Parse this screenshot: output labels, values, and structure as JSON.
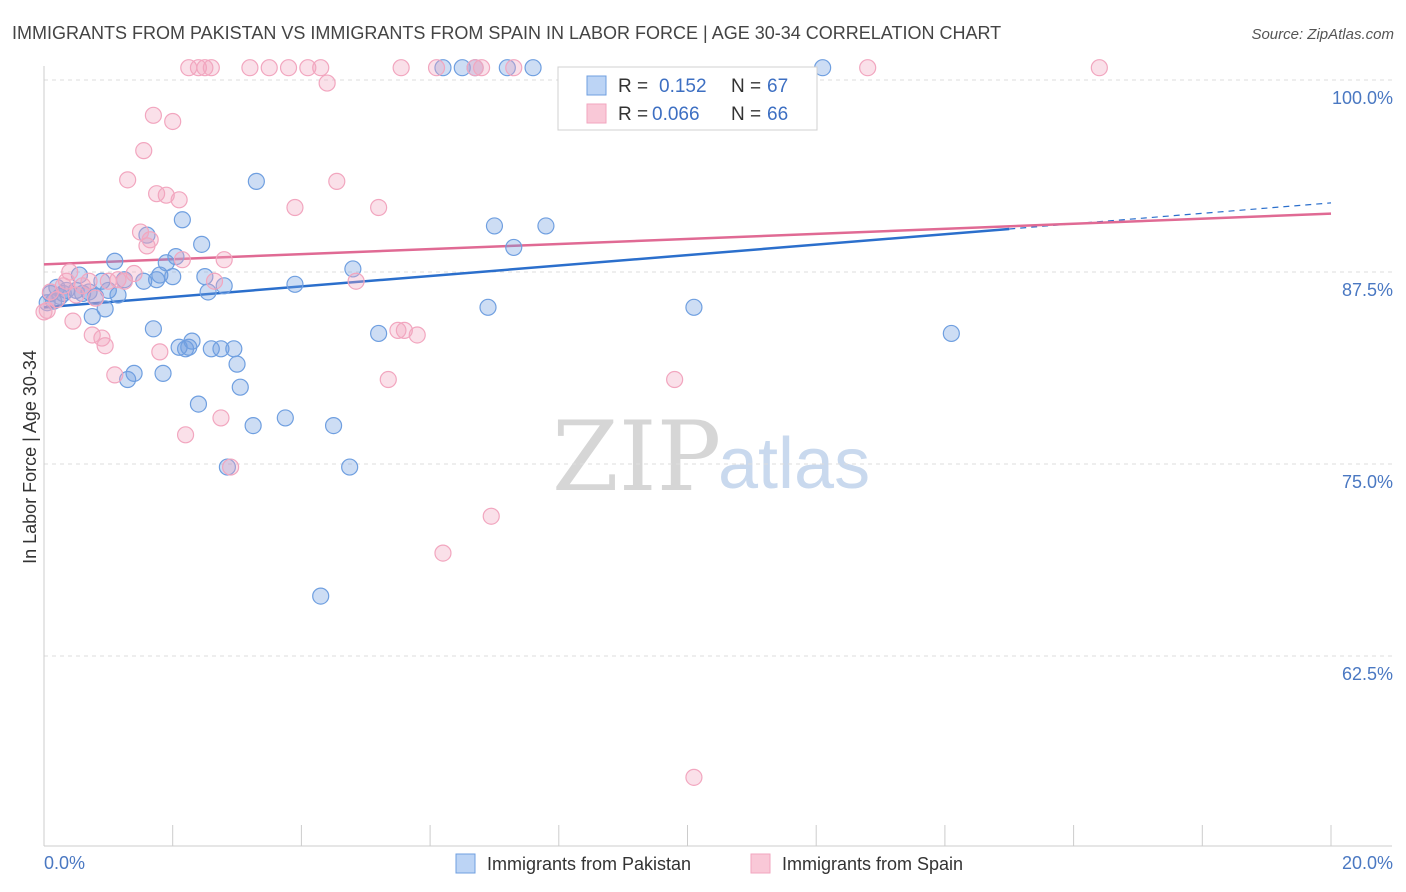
{
  "title": "IMMIGRANTS FROM PAKISTAN VS IMMIGRANTS FROM SPAIN IN LABOR FORCE | AGE 30-34 CORRELATION CHART",
  "source": "Source: ZipAtlas.com",
  "watermark": {
    "zip": "ZIP",
    "atlas": "atlas"
  },
  "chart_data": {
    "type": "scatter",
    "ylabel": "In Labor Force | Age 30-34",
    "xlim": [
      0,
      20
    ],
    "ylim": [
      50,
      101.5
    ],
    "x_tick_labels": [
      {
        "value": 0,
        "label": "0.0%"
      },
      {
        "value": 20,
        "label": "20.0%"
      }
    ],
    "y_tick_labels": [
      {
        "value": 100,
        "label": "100.0%"
      },
      {
        "value": 87.5,
        "label": "87.5%"
      },
      {
        "value": 75,
        "label": "75.0%"
      },
      {
        "value": 62.5,
        "label": "62.5%"
      }
    ],
    "grid": "horizontal dashed",
    "legend_position": "top-center",
    "series": [
      {
        "name": "Immigrants from Pakistan",
        "color": "#6f9fe0",
        "line_color": "#2b6fcc",
        "R": "0.152",
        "N": "67",
        "trend": {
          "x0": 0,
          "y0": 85.2,
          "x1": 15.0,
          "y1": 90.3,
          "dash_to_x": 20,
          "dash_to_y": 92.0
        },
        "points": [
          [
            0.1,
            86.1
          ],
          [
            0.15,
            85.6
          ],
          [
            0.2,
            86.5
          ],
          [
            0.3,
            86.1
          ],
          [
            0.35,
            86.3
          ],
          [
            0.5,
            86.3
          ],
          [
            0.55,
            87.3
          ],
          [
            0.6,
            86.1
          ],
          [
            0.7,
            86.2
          ],
          [
            0.75,
            84.6
          ],
          [
            0.8,
            85.9
          ],
          [
            0.9,
            86.9
          ],
          [
            0.95,
            85.1
          ],
          [
            1.0,
            86.3
          ],
          [
            1.1,
            88.2
          ],
          [
            1.15,
            86.0
          ],
          [
            1.25,
            87.0
          ],
          [
            1.3,
            80.5
          ],
          [
            1.4,
            80.9
          ],
          [
            1.55,
            86.9
          ],
          [
            1.6,
            89.9
          ],
          [
            1.7,
            83.8
          ],
          [
            1.75,
            87.0
          ],
          [
            1.8,
            87.3
          ],
          [
            1.85,
            80.9
          ],
          [
            1.9,
            88.1
          ],
          [
            2.0,
            87.2
          ],
          [
            2.05,
            88.5
          ],
          [
            2.1,
            82.6
          ],
          [
            2.15,
            90.9
          ],
          [
            2.2,
            82.5
          ],
          [
            2.25,
            82.6
          ],
          [
            2.3,
            83.0
          ],
          [
            2.4,
            78.9
          ],
          [
            2.45,
            89.3
          ],
          [
            2.5,
            87.2
          ],
          [
            2.55,
            86.2
          ],
          [
            2.6,
            82.5
          ],
          [
            2.75,
            82.5
          ],
          [
            2.8,
            86.6
          ],
          [
            2.85,
            74.8
          ],
          [
            2.95,
            82.5
          ],
          [
            3.0,
            81.5
          ],
          [
            3.05,
            80.0
          ],
          [
            3.25,
            77.5
          ],
          [
            3.3,
            93.4
          ],
          [
            3.75,
            78.0
          ],
          [
            3.9,
            86.7
          ],
          [
            4.3,
            66.4
          ],
          [
            4.5,
            77.5
          ],
          [
            4.75,
            74.8
          ],
          [
            4.8,
            87.7
          ],
          [
            5.2,
            83.5
          ],
          [
            6.2,
            100.8
          ],
          [
            6.5,
            100.8
          ],
          [
            6.7,
            100.8
          ],
          [
            6.9,
            85.2
          ],
          [
            7.0,
            90.5
          ],
          [
            7.2,
            100.8
          ],
          [
            7.3,
            89.1
          ],
          [
            7.6,
            100.8
          ],
          [
            7.8,
            90.5
          ],
          [
            10.1,
            85.2
          ],
          [
            12.1,
            100.8
          ],
          [
            14.1,
            83.5
          ],
          [
            0.05,
            85.5
          ],
          [
            0.25,
            85.9
          ]
        ]
      },
      {
        "name": "Immigrants from Spain",
        "color": "#f2a6bf",
        "line_color": "#e06a94",
        "R": "0.066",
        "N": "66",
        "trend": {
          "x0": 0,
          "y0": 88.0,
          "x1": 20,
          "y1": 91.3
        },
        "points": [
          [
            0.05,
            85.0
          ],
          [
            0.1,
            86.2
          ],
          [
            0.2,
            85.7
          ],
          [
            0.3,
            86.6
          ],
          [
            0.35,
            86.9
          ],
          [
            0.4,
            87.5
          ],
          [
            0.45,
            84.3
          ],
          [
            0.5,
            86.0
          ],
          [
            0.6,
            86.6
          ],
          [
            0.7,
            86.9
          ],
          [
            0.75,
            83.4
          ],
          [
            0.8,
            85.8
          ],
          [
            0.9,
            83.2
          ],
          [
            0.95,
            82.7
          ],
          [
            1.0,
            86.9
          ],
          [
            1.1,
            80.8
          ],
          [
            1.15,
            87.0
          ],
          [
            1.25,
            86.9
          ],
          [
            1.3,
            93.5
          ],
          [
            1.4,
            87.4
          ],
          [
            1.5,
            90.1
          ],
          [
            1.55,
            95.4
          ],
          [
            1.6,
            89.2
          ],
          [
            1.65,
            89.6
          ],
          [
            1.7,
            97.7
          ],
          [
            1.75,
            92.6
          ],
          [
            1.8,
            82.3
          ],
          [
            1.9,
            92.5
          ],
          [
            2.0,
            97.3
          ],
          [
            2.1,
            92.2
          ],
          [
            2.15,
            88.3
          ],
          [
            2.2,
            76.9
          ],
          [
            2.25,
            100.8
          ],
          [
            2.4,
            100.8
          ],
          [
            2.5,
            100.8
          ],
          [
            2.6,
            100.8
          ],
          [
            2.65,
            86.9
          ],
          [
            2.75,
            78.0
          ],
          [
            2.8,
            88.3
          ],
          [
            2.9,
            74.8
          ],
          [
            3.2,
            100.8
          ],
          [
            3.5,
            100.8
          ],
          [
            3.8,
            100.8
          ],
          [
            3.9,
            91.7
          ],
          [
            4.1,
            100.8
          ],
          [
            4.3,
            100.8
          ],
          [
            4.4,
            99.8
          ],
          [
            4.55,
            93.4
          ],
          [
            4.85,
            86.9
          ],
          [
            5.2,
            91.7
          ],
          [
            5.35,
            80.5
          ],
          [
            5.5,
            83.7
          ],
          [
            5.55,
            100.8
          ],
          [
            5.6,
            83.7
          ],
          [
            5.8,
            83.4
          ],
          [
            6.1,
            100.8
          ],
          [
            6.2,
            69.2
          ],
          [
            6.7,
            100.8
          ],
          [
            6.8,
            100.8
          ],
          [
            6.95,
            71.6
          ],
          [
            7.3,
            100.8
          ],
          [
            9.8,
            80.5
          ],
          [
            10.1,
            54.6
          ],
          [
            12.8,
            100.8
          ],
          [
            16.4,
            100.8
          ],
          [
            0.0,
            84.9
          ]
        ]
      }
    ]
  },
  "legend": {
    "r_label": "R =",
    "n_label": "N =",
    "entries": [
      {
        "r": "0.152",
        "n": "67"
      },
      {
        "r": "0.066",
        "n": "66"
      }
    ]
  },
  "bottom_legend": [
    {
      "label": "Immigrants from Pakistan"
    },
    {
      "label": "Immigrants from Spain"
    }
  ]
}
